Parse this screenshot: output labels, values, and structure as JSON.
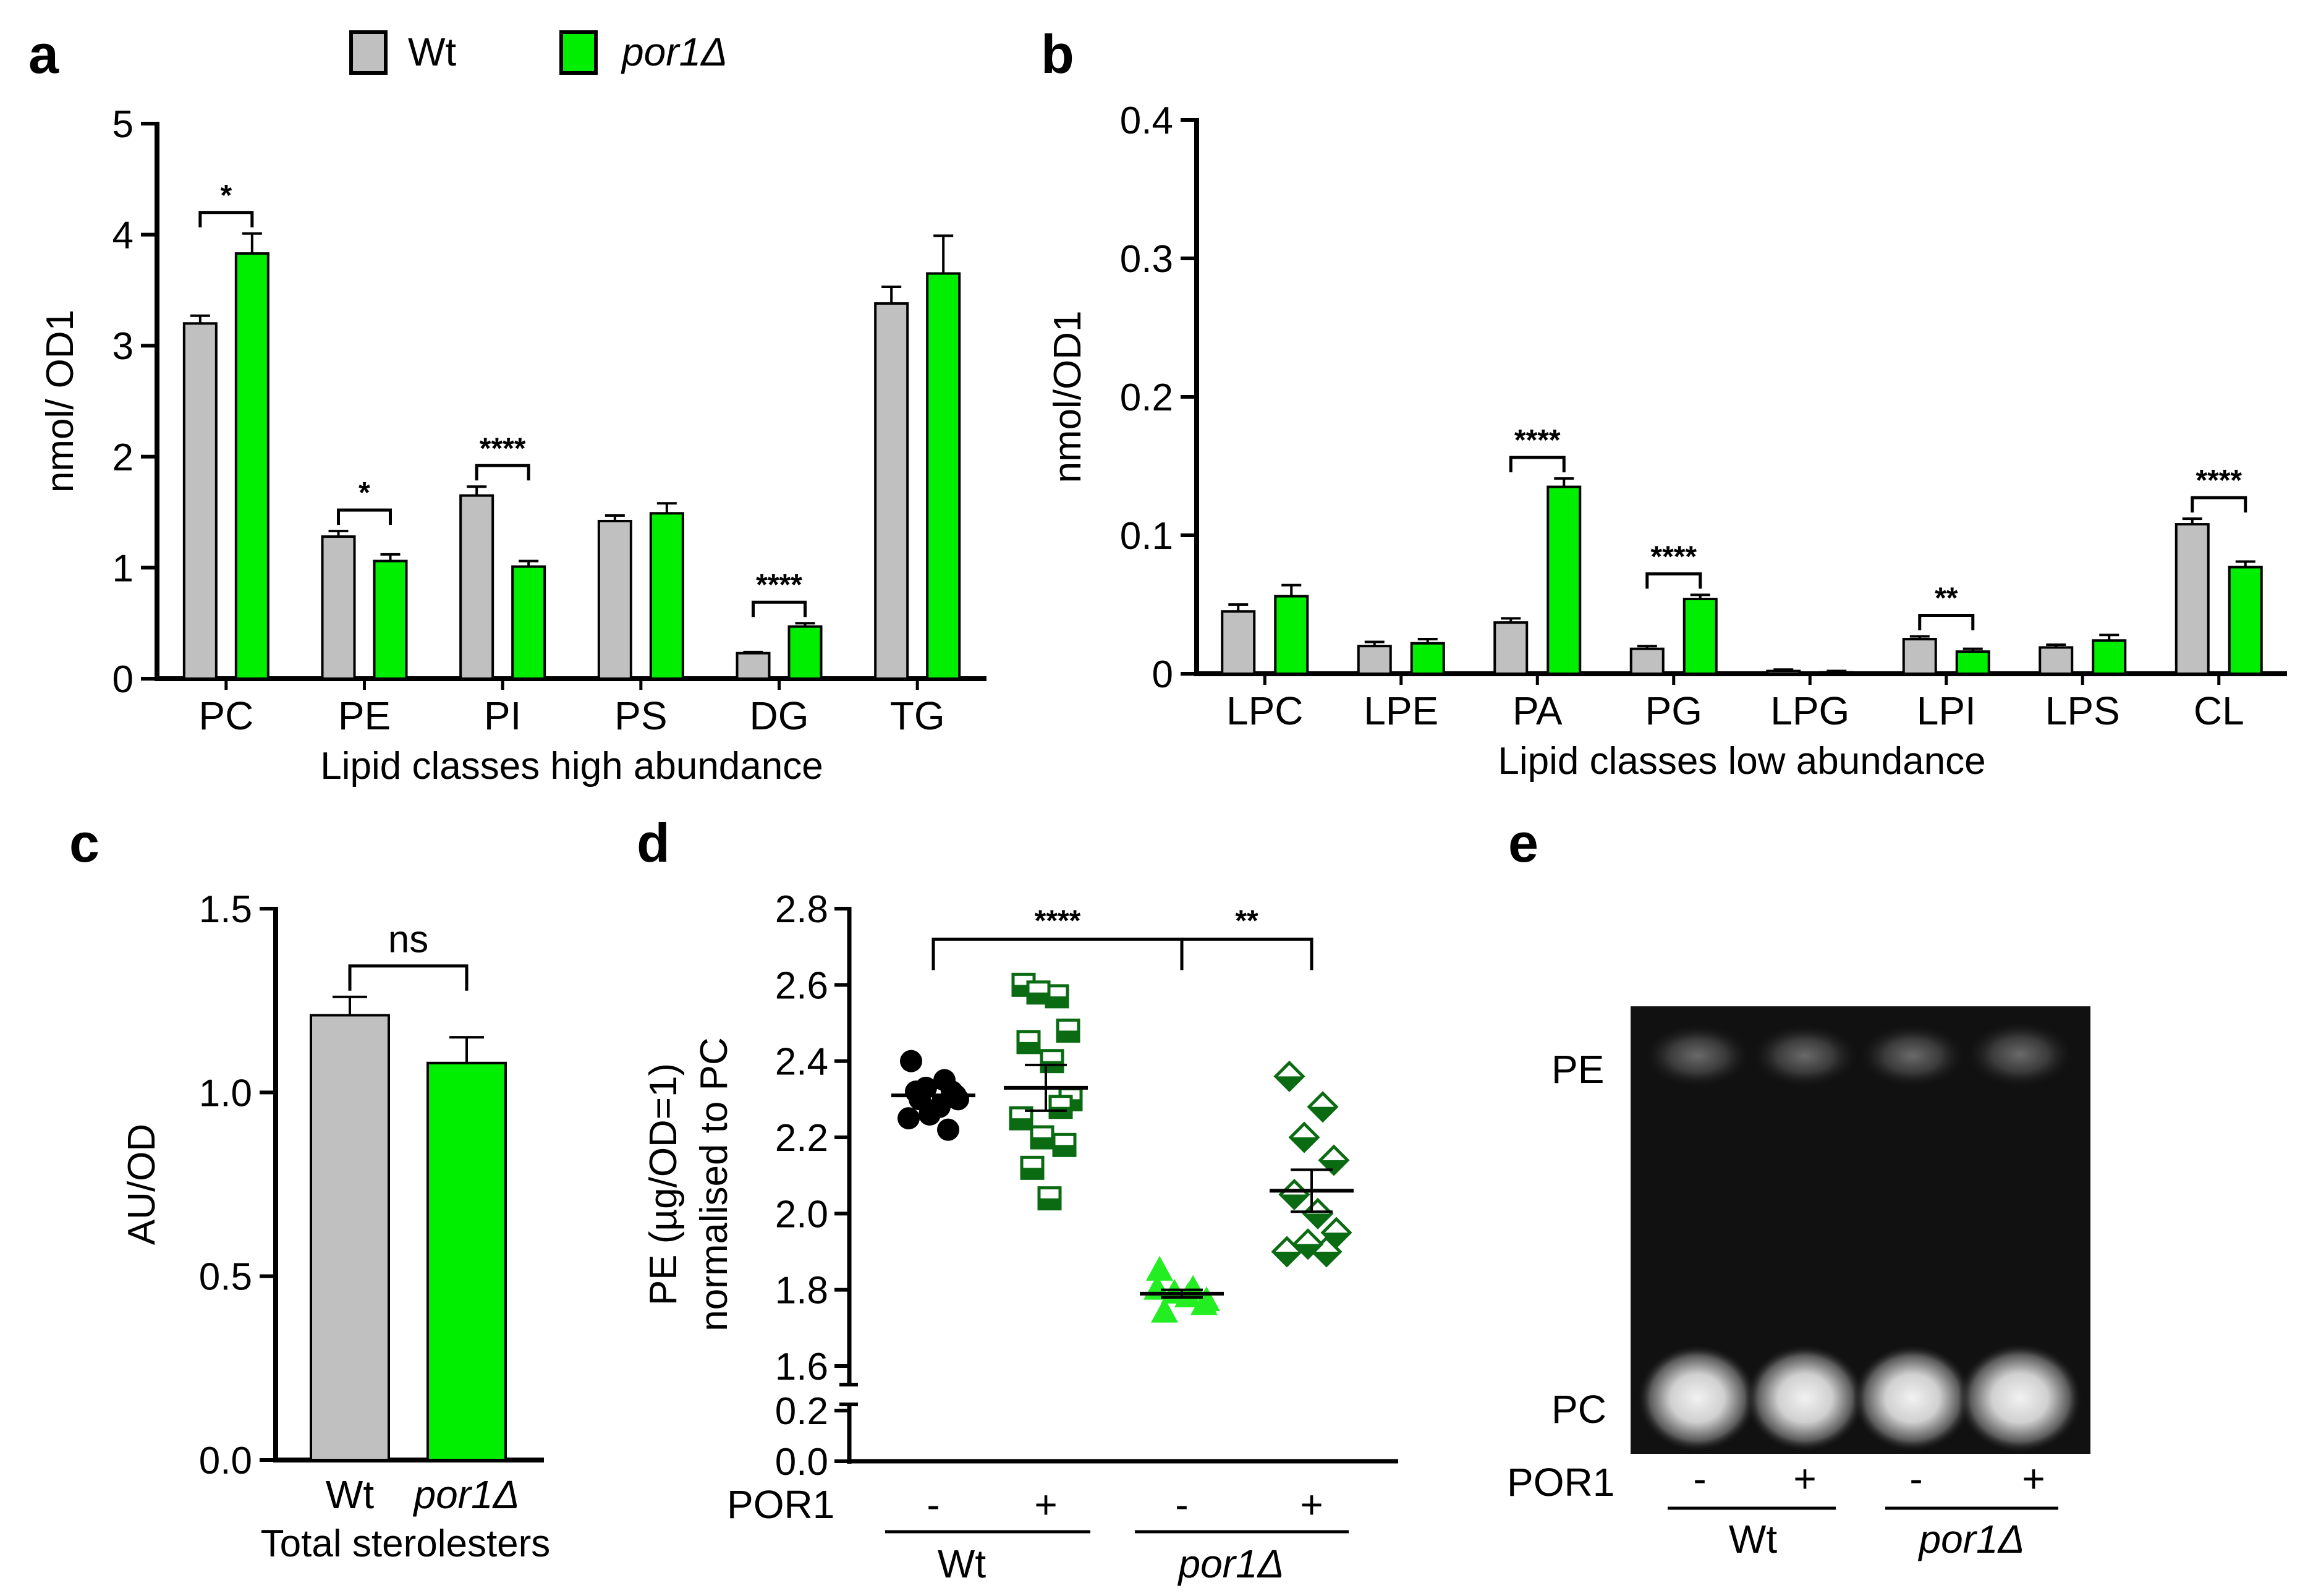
{
  "colors": {
    "wt": "#c0c0c0",
    "por1": "#00ee00",
    "dark_green": "#0a6b12",
    "light_green": "#22ee22",
    "black": "#000000"
  },
  "legend": {
    "wt_label": "Wt",
    "por1_label": "por1Δ"
  },
  "chart_data": [
    {
      "panel": "a",
      "type": "bar",
      "ylabel": "nmol/ OD1",
      "xlabel": "Lipid classes high abundance",
      "ylim": [
        0,
        5
      ],
      "yticks": [
        0,
        1,
        2,
        3,
        4,
        5
      ],
      "categories": [
        "PC",
        "PE",
        "PI",
        "PS",
        "DG",
        "TG"
      ],
      "series": [
        {
          "name": "Wt",
          "values": [
            3.2,
            1.28,
            1.65,
            1.42,
            0.23,
            3.38
          ],
          "errors": [
            0.07,
            0.05,
            0.08,
            0.05,
            0.01,
            0.15
          ]
        },
        {
          "name": "por1Δ",
          "values": [
            3.83,
            1.06,
            1.01,
            1.49,
            0.47,
            3.65
          ],
          "errors": [
            0.18,
            0.06,
            0.05,
            0.09,
            0.03,
            0.34
          ]
        }
      ],
      "significance": [
        {
          "category": "PC",
          "label": "*"
        },
        {
          "category": "PE",
          "label": "*"
        },
        {
          "category": "PI",
          "label": "****"
        },
        {
          "category": "DG",
          "label": "****"
        }
      ]
    },
    {
      "panel": "b",
      "type": "bar",
      "ylabel": "nmol/OD1",
      "xlabel": "Lipid classes low abundance",
      "ylim": [
        0,
        0.4
      ],
      "yticks": [
        0,
        0.1,
        0.2,
        0.3,
        0.4
      ],
      "ytick_labels": [
        "0",
        "0.1",
        "0.2",
        "0.3",
        "0.4"
      ],
      "categories": [
        "LPC",
        "LPE",
        "PA",
        "PG",
        "LPG",
        "LPI",
        "LPS",
        "CL"
      ],
      "series": [
        {
          "name": "Wt",
          "values": [
            0.045,
            0.02,
            0.037,
            0.018,
            0.002,
            0.025,
            0.019,
            0.108
          ],
          "errors": [
            0.005,
            0.003,
            0.003,
            0.002,
            0.001,
            0.002,
            0.002,
            0.004
          ]
        },
        {
          "name": "por1Δ",
          "values": [
            0.056,
            0.022,
            0.135,
            0.054,
            0.001,
            0.016,
            0.024,
            0.077
          ],
          "errors": [
            0.008,
            0.003,
            0.006,
            0.003,
            0.001,
            0.002,
            0.004,
            0.004
          ]
        }
      ],
      "significance": [
        {
          "category": "PA",
          "label": "****"
        },
        {
          "category": "PG",
          "label": "****"
        },
        {
          "category": "LPI",
          "label": "**"
        },
        {
          "category": "CL",
          "label": "****"
        }
      ]
    },
    {
      "panel": "c",
      "type": "bar",
      "ylabel": "AU/OD",
      "xlabel": "Total sterolesters",
      "ylim": [
        0,
        1.5
      ],
      "yticks": [
        0,
        0.5,
        1.0,
        1.5
      ],
      "ytick_labels": [
        "0.0",
        "0.5",
        "1.0",
        "1.5"
      ],
      "categories": [
        "Wt",
        "por1Δ"
      ],
      "values": [
        1.21,
        1.08
      ],
      "errors": [
        0.05,
        0.07
      ],
      "significance": [
        {
          "label": "ns"
        }
      ]
    },
    {
      "panel": "d",
      "type": "scatter",
      "ylabel": "PE  (µg/OD=1)",
      "ylabel2": "normalised to PC",
      "ylim": [
        1.6,
        2.8
      ],
      "yticks_upper": [
        1.6,
        1.8,
        2.0,
        2.2,
        2.4,
        2.6,
        2.8
      ],
      "ytick_labels_upper": [
        "1.6",
        "1.8",
        "2.0",
        "2.2",
        "2.4",
        "2.6",
        "2.8"
      ],
      "yticks_lower": [
        0.0,
        0.2
      ],
      "ytick_labels_lower": [
        "0.0",
        "0.2"
      ],
      "row_label": "POR1",
      "groups": [
        {
          "strain": "Wt",
          "por1": "-",
          "marker": "circle",
          "points": [
            2.4,
            2.35,
            2.33,
            2.31,
            2.32,
            2.28,
            2.3,
            2.25,
            2.22,
            2.26,
            2.32,
            2.3
          ],
          "mean": 2.31,
          "sem": 0.02
        },
        {
          "strain": "Wt",
          "por1": "+",
          "marker": "square-half",
          "points": [
            2.6,
            2.57,
            2.58,
            2.48,
            2.45,
            2.4,
            2.3,
            2.25,
            2.28,
            2.2,
            2.18,
            2.12,
            2.04
          ],
          "mean": 2.33,
          "sem": 0.06
        },
        {
          "strain": "por1Δ",
          "por1": "-",
          "marker": "triangle",
          "points": [
            1.85,
            1.8,
            1.79,
            1.76,
            1.74,
            1.78,
            1.77,
            1.8
          ],
          "mean": 1.79,
          "sem": 0.01
        },
        {
          "strain": "por1Δ",
          "por1": "+",
          "marker": "diamond-half",
          "points": [
            2.36,
            2.28,
            2.2,
            2.14,
            2.05,
            2.0,
            1.95,
            1.9,
            1.9,
            1.92
          ],
          "mean": 2.06,
          "sem": 0.055
        }
      ],
      "group_labels": [
        "Wt",
        "por1Δ"
      ],
      "significance": [
        {
          "from": "Wt -",
          "to": "por1Δ -",
          "label": "****"
        },
        {
          "from": "por1Δ -",
          "to": "por1Δ +",
          "label": "**"
        }
      ]
    }
  ],
  "panel_e": {
    "letter": "e",
    "band_labels": [
      "PE",
      "PC"
    ],
    "row_label": "POR1",
    "lane_signs": [
      "-",
      "+",
      "-",
      "+"
    ],
    "group_labels": [
      "Wt",
      "por1Δ"
    ]
  },
  "panel_letters": [
    "a",
    "b",
    "c",
    "d",
    "e"
  ]
}
